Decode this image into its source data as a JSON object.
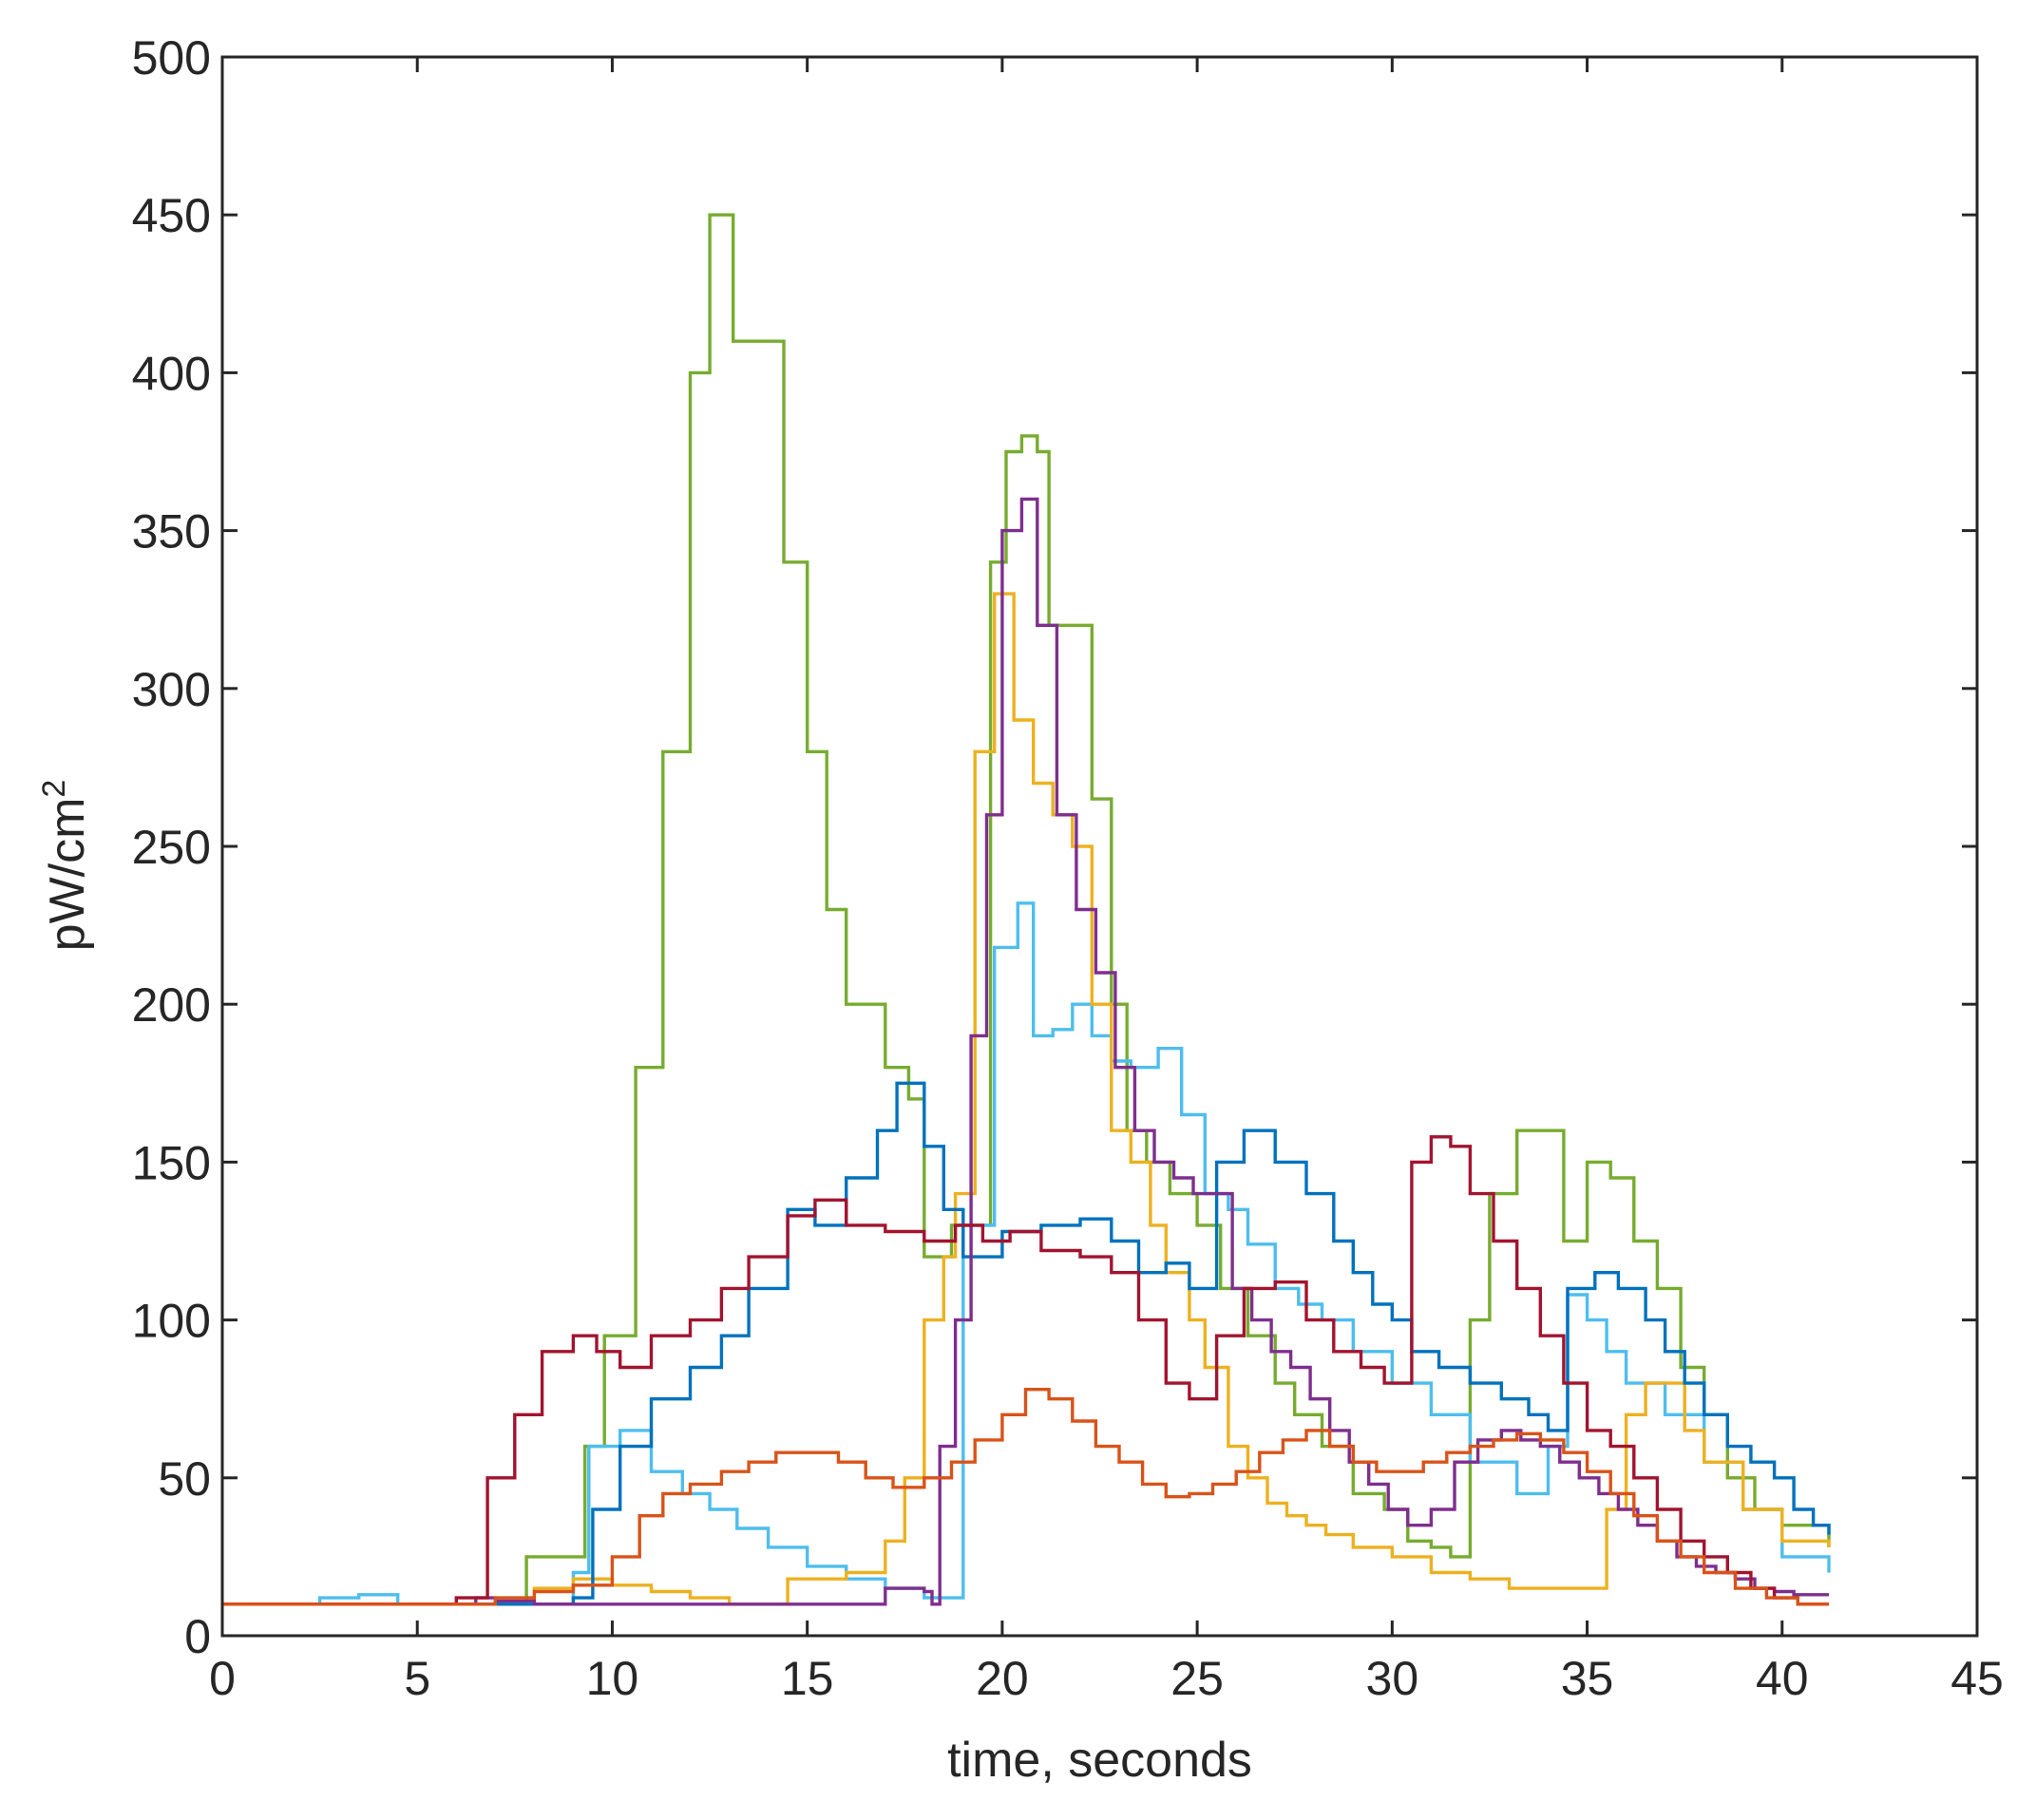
{
  "chart_data": {
    "type": "line",
    "title": "",
    "xlabel": "time, seconds",
    "ylabel": "pW/cm",
    "ylabel_superscript": "2",
    "xlim": [
      0,
      45
    ],
    "ylim": [
      0,
      500
    ],
    "xticks": [
      0,
      5,
      10,
      15,
      20,
      25,
      30,
      35,
      40,
      45
    ],
    "yticks": [
      0,
      50,
      100,
      150,
      200,
      250,
      300,
      350,
      400,
      450,
      500
    ],
    "grid": false,
    "legend": "none",
    "step": true,
    "series": [
      {
        "color": "#77AC30",
        "x": [
          0,
          7.8,
          8.5,
          9.3,
          9.8,
          10.6,
          11.3,
          12.0,
          12.5,
          13.1,
          13.9,
          14.4,
          15.0,
          15.5,
          16.0,
          17.0,
          17.6,
          18.0,
          18.7,
          19.2,
          19.7,
          20.1,
          20.5,
          20.9,
          21.2,
          21.8,
          22.3,
          22.8,
          23.2,
          23.7,
          24.3,
          25.0,
          25.6,
          26.3,
          27.0,
          27.5,
          28.2,
          29.0,
          29.8,
          30.4,
          31.0,
          31.5,
          32.0,
          32.5,
          33.2,
          33.8,
          34.4,
          35.0,
          35.6,
          36.2,
          36.8,
          37.4,
          38.0,
          38.6,
          39.3,
          40.0,
          41.2
        ],
        "y": [
          10,
          25,
          25,
          60,
          95,
          180,
          280,
          400,
          450,
          410,
          410,
          340,
          280,
          230,
          200,
          180,
          170,
          120,
          130,
          130,
          340,
          375,
          380,
          375,
          320,
          320,
          265,
          200,
          160,
          150,
          140,
          130,
          110,
          95,
          80,
          70,
          60,
          45,
          40,
          30,
          28,
          25,
          100,
          140,
          160,
          160,
          125,
          150,
          145,
          125,
          110,
          85,
          70,
          50,
          40,
          35,
          28
        ]
      },
      {
        "color": "#4DBEEE",
        "x": [
          0,
          2.5,
          3.5,
          4.5,
          9.0,
          9.4,
          10.2,
          11.0,
          11.8,
          12.5,
          13.2,
          14.0,
          15.0,
          16.0,
          17.0,
          18.0,
          18.5,
          19.0,
          19.8,
          20.4,
          20.8,
          21.3,
          21.8,
          22.3,
          22.8,
          23.3,
          24.0,
          24.6,
          25.2,
          25.8,
          26.3,
          27.0,
          27.6,
          28.2,
          29.0,
          30.0,
          31.0,
          32.0,
          32.6,
          33.2,
          34.0,
          34.5,
          35.0,
          35.5,
          36.0,
          37.0,
          38.0,
          39.0,
          40.0,
          41.2
        ],
        "y": [
          10,
          12,
          13,
          10,
          20,
          60,
          65,
          52,
          45,
          40,
          34,
          28,
          22,
          18,
          15,
          12,
          12,
          130,
          218,
          232,
          190,
          192,
          200,
          190,
          182,
          180,
          186,
          165,
          140,
          135,
          124,
          110,
          105,
          100,
          90,
          80,
          70,
          55,
          55,
          45,
          60,
          108,
          100,
          90,
          80,
          70,
          55,
          40,
          25,
          20
        ]
      },
      {
        "color": "#EDB120",
        "x": [
          0,
          8.0,
          9.0,
          10.0,
          11.0,
          12.0,
          13.0,
          14.5,
          16.0,
          17.0,
          17.5,
          18.0,
          18.5,
          18.8,
          19.3,
          19.8,
          20.3,
          20.8,
          21.3,
          21.8,
          22.3,
          22.8,
          23.3,
          23.8,
          24.2,
          24.8,
          25.2,
          25.8,
          26.3,
          26.8,
          27.3,
          27.8,
          28.3,
          29.0,
          30.0,
          31.0,
          32.0,
          33.0,
          34.0,
          35.0,
          35.5,
          36.0,
          36.5,
          37.0,
          37.5,
          38.0,
          39.0,
          40.0,
          41.2
        ],
        "y": [
          10,
          15,
          18,
          16,
          14,
          12,
          10,
          18,
          20,
          30,
          50,
          100,
          120,
          140,
          280,
          330,
          290,
          270,
          260,
          250,
          200,
          160,
          150,
          130,
          115,
          100,
          85,
          60,
          50,
          42,
          38,
          35,
          32,
          28,
          25,
          20,
          18,
          15,
          15,
          15,
          40,
          70,
          80,
          80,
          65,
          55,
          40,
          30,
          28
        ]
      },
      {
        "color": "#0072BD",
        "x": [
          0,
          9.0,
          9.5,
          10.2,
          11.0,
          12.0,
          12.8,
          13.5,
          14.5,
          15.2,
          16.0,
          16.8,
          17.3,
          18.0,
          18.5,
          19.0,
          20.0,
          21.0,
          22.0,
          22.8,
          23.5,
          24.2,
          24.8,
          25.5,
          26.2,
          27.0,
          27.8,
          28.5,
          29.0,
          29.5,
          30.0,
          30.5,
          31.2,
          32.0,
          32.8,
          33.5,
          34.0,
          34.5,
          35.2,
          35.8,
          36.5,
          37.0,
          37.5,
          38.0,
          38.6,
          39.2,
          39.8,
          40.3,
          40.8,
          41.2
        ],
        "y": [
          10,
          12,
          40,
          60,
          75,
          85,
          95,
          110,
          135,
          130,
          145,
          160,
          175,
          155,
          135,
          120,
          128,
          130,
          132,
          125,
          115,
          118,
          110,
          150,
          160,
          150,
          140,
          125,
          115,
          105,
          100,
          90,
          85,
          80,
          75,
          70,
          65,
          110,
          115,
          110,
          100,
          90,
          80,
          70,
          60,
          55,
          50,
          40,
          35,
          32
        ]
      },
      {
        "color": "#7E2F8E",
        "x": [
          0,
          6.5,
          7.0,
          8.0,
          13.0,
          17.0,
          18.0,
          18.2,
          18.4,
          18.8,
          19.2,
          19.6,
          20.0,
          20.5,
          20.9,
          21.4,
          21.9,
          22.4,
          22.9,
          23.4,
          23.9,
          24.4,
          24.9,
          25.4,
          25.9,
          26.4,
          26.9,
          27.4,
          27.9,
          28.4,
          28.9,
          29.4,
          29.9,
          30.4,
          31.0,
          31.6,
          32.2,
          32.8,
          33.3,
          33.8,
          34.3,
          34.8,
          35.3,
          35.8,
          36.3,
          36.8,
          37.3,
          37.8,
          38.3,
          38.8,
          39.3,
          39.8,
          40.3,
          41.2
        ],
        "y": [
          10,
          12,
          11,
          10,
          10,
          15,
          14,
          10,
          60,
          100,
          190,
          260,
          350,
          360,
          320,
          260,
          230,
          210,
          180,
          160,
          150,
          145,
          140,
          140,
          110,
          100,
          90,
          85,
          75,
          65,
          55,
          48,
          40,
          35,
          40,
          55,
          62,
          65,
          62,
          60,
          55,
          50,
          45,
          40,
          35,
          30,
          25,
          22,
          20,
          18,
          15,
          14,
          13,
          13
        ]
      },
      {
        "color": "#A2142F",
        "x": [
          0,
          6.0,
          6.8,
          7.5,
          8.2,
          9.0,
          9.6,
          10.2,
          11.0,
          12.0,
          12.8,
          13.5,
          14.5,
          15.2,
          16.0,
          17.0,
          18.0,
          18.8,
          19.5,
          20.2,
          21.0,
          22.0,
          22.8,
          23.5,
          24.2,
          24.8,
          25.5,
          26.2,
          27.0,
          27.8,
          28.5,
          29.2,
          29.8,
          30.5,
          31.0,
          31.5,
          32.0,
          32.6,
          33.2,
          33.8,
          34.4,
          35.0,
          35.6,
          36.2,
          36.8,
          37.4,
          38.0,
          38.6,
          39.2,
          39.8,
          40.4,
          41.2
        ],
        "y": [
          10,
          12,
          50,
          70,
          90,
          95,
          90,
          85,
          95,
          100,
          110,
          120,
          133,
          138,
          130,
          128,
          125,
          130,
          125,
          128,
          122,
          120,
          115,
          100,
          80,
          75,
          95,
          110,
          112,
          100,
          90,
          85,
          80,
          150,
          158,
          155,
          140,
          125,
          110,
          95,
          80,
          65,
          60,
          50,
          40,
          30,
          25,
          20,
          15,
          12,
          10,
          10
        ]
      },
      {
        "color": "#D95319",
        "x": [
          0,
          7.0,
          8.0,
          9.0,
          10.0,
          10.7,
          11.3,
          12.0,
          12.8,
          13.5,
          14.2,
          15.0,
          15.8,
          16.5,
          17.2,
          18.0,
          18.7,
          19.3,
          20.0,
          20.6,
          21.2,
          21.8,
          22.4,
          23.0,
          23.6,
          24.2,
          24.8,
          25.4,
          26.0,
          26.6,
          27.2,
          27.8,
          28.4,
          29.0,
          29.6,
          30.2,
          30.8,
          31.4,
          32.0,
          32.6,
          33.2,
          33.8,
          34.4,
          35.0,
          35.6,
          36.2,
          36.8,
          37.4,
          38.0,
          38.8,
          39.6,
          40.4,
          41.2
        ],
        "y": [
          10,
          12,
          14,
          16,
          25,
          38,
          45,
          48,
          52,
          55,
          58,
          58,
          55,
          50,
          47,
          50,
          55,
          62,
          70,
          78,
          75,
          68,
          60,
          55,
          48,
          44,
          45,
          48,
          52,
          58,
          62,
          65,
          60,
          55,
          52,
          52,
          55,
          58,
          60,
          62,
          64,
          62,
          58,
          52,
          45,
          38,
          30,
          25,
          20,
          15,
          12,
          10,
          10
        ]
      }
    ]
  }
}
